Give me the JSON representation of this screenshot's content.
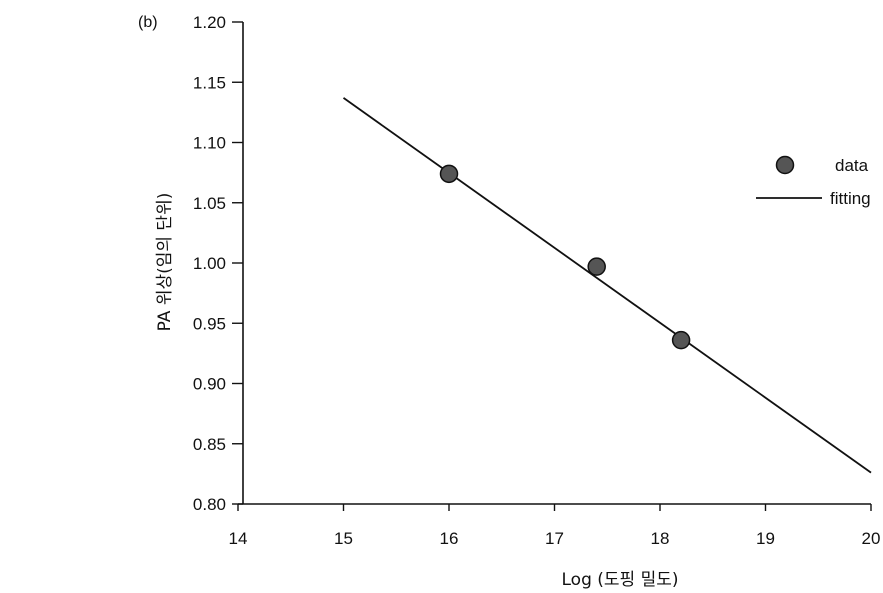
{
  "panel_label": "(b)",
  "chart_data": {
    "type": "scatter",
    "title": "",
    "xlabel": "Log (도핑 밀도)",
    "ylabel": "PA 위상(임의 단위)",
    "xlim": [
      14,
      20
    ],
    "ylim": [
      0.8,
      1.2
    ],
    "x_ticks": [
      14,
      15,
      16,
      17,
      18,
      19,
      20
    ],
    "x_tick_labels": [
      "14",
      "15",
      "16",
      "17",
      "18",
      "19",
      "20"
    ],
    "y_ticks": [
      0.8,
      0.85,
      0.9,
      0.95,
      1.0,
      1.05,
      1.1,
      1.15,
      1.2
    ],
    "y_tick_labels": [
      "0.80",
      "0.85",
      "0.90",
      "0.95",
      "1.00",
      "1.05",
      "1.10",
      "1.15",
      "1.20"
    ],
    "grid": false,
    "legend_position": "top-right",
    "series": [
      {
        "name": "data",
        "kind": "points",
        "color": "#555555",
        "points": [
          [
            16.0,
            1.074
          ],
          [
            17.4,
            0.997
          ],
          [
            18.2,
            0.936
          ]
        ]
      },
      {
        "name": "fitting",
        "kind": "line",
        "color": "#111111",
        "points": [
          [
            15.0,
            1.137
          ],
          [
            20.0,
            0.826
          ]
        ]
      }
    ]
  }
}
